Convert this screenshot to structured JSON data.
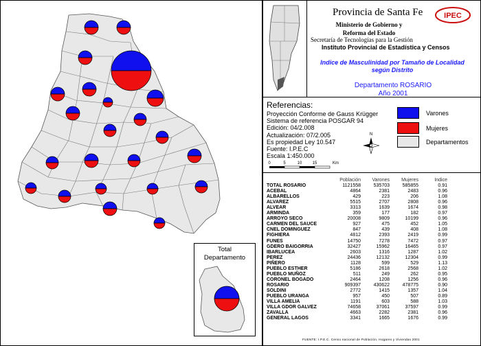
{
  "header": {
    "province": "Provincia de Santa Fe",
    "ministry_line1": "Ministerio de Gobierno y",
    "ministry_line2": "Reforma del Estado",
    "secretaria": "Secretaría de Tecnologías para la Gestión",
    "institute": "Instituto Provincial de Estadística y Censos",
    "logo_text": "IPEC"
  },
  "map_title": {
    "line1": "Indice de Masculinidad por Tamaño de Localidad",
    "line2": "según Distrito",
    "department": "Departamento ROSARIO",
    "year": "Año 2001"
  },
  "references": {
    "title": "Referencias:",
    "projection": "Proyección Conforme de Gauss Krügger",
    "reference_system": "Sistema de referencia POSGAR 94",
    "edition": "Edición:  04/2.008",
    "update": "Actualización:  07/2.005",
    "law": "Es propiedad Ley 10.547",
    "source": "Fuente:  I.P.E.C",
    "scale": "Escala 1:450.000",
    "scale_ticks": [
      "0",
      "5",
      "10",
      "15",
      "Km"
    ],
    "north": "N"
  },
  "legend": [
    {
      "label": "Varones",
      "color": "#1010ee"
    },
    {
      "label": "Mujeres",
      "color": "#ee1010"
    },
    {
      "label": "Departamentos",
      "color": "#e8e8e8"
    }
  ],
  "total_label": {
    "line1": "Total",
    "line2": "Departamento"
  },
  "table": {
    "headers": [
      "Población",
      "Varones",
      "Mujeres",
      "Indice"
    ],
    "rows": [
      {
        "name": "TOTAL ROSARIO",
        "pob": "1121558",
        "var": "535703",
        "muj": "585855",
        "idx": "0.91"
      },
      {
        "name": "ACEBAL",
        "pob": "4864",
        "var": "2381",
        "muj": "2483",
        "idx": "0.96"
      },
      {
        "name": "ALBARELLOS",
        "pob": "429",
        "var": "223",
        "muj": "206",
        "idx": "1.08"
      },
      {
        "name": "ALVAREZ",
        "pob": "5515",
        "var": "2707",
        "muj": "2808",
        "idx": "0.96"
      },
      {
        "name": "ALVEAR",
        "pob": "3313",
        "var": "1639",
        "muj": "1674",
        "idx": "0.98"
      },
      {
        "name": "ARMINDA",
        "pob": "359",
        "var": "177",
        "muj": "182",
        "idx": "0.97"
      },
      {
        "name": "ARROYO SECO",
        "pob": "20008",
        "var": "9809",
        "muj": "10199",
        "idx": "0.96"
      },
      {
        "name": "CARMEN DEL SAUCE",
        "pob": "927",
        "var": "475",
        "muj": "452",
        "idx": "1.05"
      },
      {
        "name": "CNEL DOMINGUEZ",
        "pob": "847",
        "var": "439",
        "muj": "408",
        "idx": "1.08"
      },
      {
        "name": "FIGHIERA",
        "pob": "4812",
        "var": "2393",
        "muj": "2419",
        "idx": "0.99"
      },
      {
        "name": "FUNES",
        "pob": "14750",
        "var": "7278",
        "muj": "7472",
        "idx": "0.97"
      },
      {
        "name": "GDERO BAIGORRIA",
        "pob": "32427",
        "var": "15962",
        "muj": "16465",
        "idx": "0.97"
      },
      {
        "name": "IBARLUCEA",
        "pob": "2603",
        "var": "1316",
        "muj": "1287",
        "idx": "1.02"
      },
      {
        "name": "PEREZ",
        "pob": "24436",
        "var": "12132",
        "muj": "12304",
        "idx": "0.99"
      },
      {
        "name": "PIÑERO",
        "pob": "1128",
        "var": "599",
        "muj": "529",
        "idx": "1.13"
      },
      {
        "name": "PUEBLO ESTHER",
        "pob": "5186",
        "var": "2618",
        "muj": "2568",
        "idx": "1.02"
      },
      {
        "name": "PUEBLO MUÑOZ",
        "pob": "511",
        "var": "249",
        "muj": "262",
        "idx": "0.95"
      },
      {
        "name": "CORONEL BOGADO",
        "pob": "2464",
        "var": "1208",
        "muj": "1256",
        "idx": "0.96"
      },
      {
        "name": "ROSARIO",
        "pob": "909397",
        "var": "430622",
        "muj": "478775",
        "idx": "0.90"
      },
      {
        "name": "SOLDINI",
        "pob": "2772",
        "var": "1415",
        "muj": "1357",
        "idx": "1.04"
      },
      {
        "name": "PUEBLO URANGA",
        "pob": "957",
        "var": "450",
        "muj": "507",
        "idx": "0.89"
      },
      {
        "name": "VILLA AMELIA",
        "pob": "1191",
        "var": "603",
        "muj": "588",
        "idx": "1.03"
      },
      {
        "name": "VILLA GDOR GALVEZ",
        "pob": "74658",
        "var": "37061",
        "muj": "37597",
        "idx": "0.99"
      },
      {
        "name": "ZAVALLA",
        "pob": "4663",
        "var": "2282",
        "muj": "2381",
        "idx": "0.96"
      },
      {
        "name": "GENERAL LAGOS",
        "pob": "3341",
        "var": "1665",
        "muj": "1676",
        "idx": "0.99"
      }
    ],
    "footer": "FUENTE: I.P.E.C. Censo nacional de Población, Hogares y Viviendas 2001"
  },
  "colors": {
    "male": "#1010ee",
    "female": "#ee1010",
    "region": "#e8e8e8"
  }
}
